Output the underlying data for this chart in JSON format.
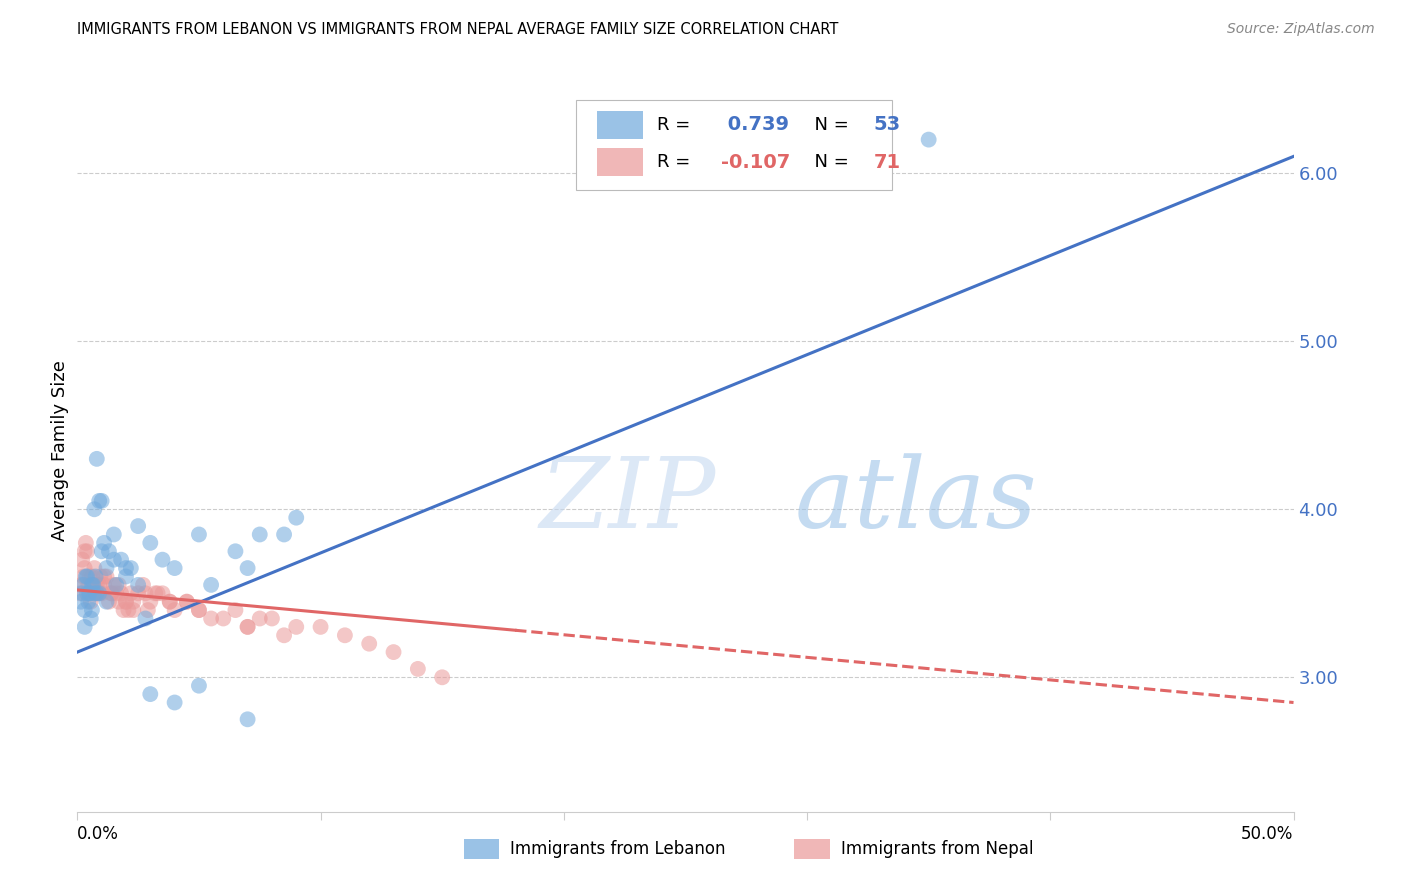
{
  "title": "IMMIGRANTS FROM LEBANON VS IMMIGRANTS FROM NEPAL AVERAGE FAMILY SIZE CORRELATION CHART",
  "source": "Source: ZipAtlas.com",
  "ylabel": "Average Family Size",
  "yticks": [
    3.0,
    4.0,
    5.0,
    6.0
  ],
  "xlim": [
    0.0,
    50.0
  ],
  "ylim": [
    2.2,
    6.5
  ],
  "watermark": "ZIPatlas",
  "lebanon_color": "#6fa8dc",
  "nepal_color": "#ea9999",
  "lebanon_line_color": "#4472c4",
  "nepal_line_color": "#e06666",
  "lebanon_R": 0.739,
  "lebanon_N": 53,
  "nepal_R": -0.107,
  "nepal_N": 71,
  "leb_line_x0": 0.0,
  "leb_line_y0": 3.15,
  "leb_line_x1": 50.0,
  "leb_line_y1": 6.1,
  "nep_line_solid_x0": 0.0,
  "nep_line_solid_y0": 3.52,
  "nep_line_solid_x1": 18.0,
  "nep_line_solid_y1": 3.28,
  "nep_line_dash_x0": 18.0,
  "nep_line_dash_y0": 3.28,
  "nep_line_dash_x1": 50.0,
  "nep_line_dash_y1": 2.85,
  "lebanon_scatter_x": [
    0.15,
    0.2,
    0.25,
    0.3,
    0.35,
    0.4,
    0.45,
    0.5,
    0.55,
    0.6,
    0.65,
    0.7,
    0.75,
    0.8,
    0.9,
    1.0,
    1.1,
    1.2,
    1.3,
    1.5,
    1.6,
    1.8,
    2.0,
    2.2,
    2.5,
    2.8,
    3.0,
    3.5,
    4.0,
    5.0,
    5.5,
    6.5,
    7.0,
    7.5,
    8.5,
    9.0,
    0.3,
    0.4,
    0.5,
    0.6,
    0.7,
    0.8,
    0.9,
    1.0,
    1.2,
    1.5,
    2.0,
    2.5,
    3.0,
    4.0,
    5.0,
    35.0,
    7.0
  ],
  "lebanon_scatter_y": [
    3.45,
    3.5,
    3.55,
    3.4,
    3.6,
    3.5,
    3.45,
    3.5,
    3.35,
    3.4,
    3.55,
    3.5,
    3.6,
    4.3,
    4.05,
    4.05,
    3.8,
    3.65,
    3.75,
    3.7,
    3.55,
    3.7,
    3.65,
    3.65,
    3.55,
    3.35,
    3.8,
    3.7,
    3.65,
    3.85,
    3.55,
    3.75,
    3.65,
    3.85,
    3.85,
    3.95,
    3.3,
    3.6,
    3.5,
    3.55,
    4.0,
    3.5,
    3.5,
    3.75,
    3.45,
    3.85,
    3.6,
    3.9,
    2.9,
    2.85,
    2.95,
    6.2,
    2.75
  ],
  "nepal_scatter_x": [
    0.1,
    0.15,
    0.2,
    0.25,
    0.3,
    0.35,
    0.4,
    0.45,
    0.5,
    0.55,
    0.6,
    0.65,
    0.7,
    0.75,
    0.8,
    0.85,
    0.9,
    0.95,
    1.0,
    1.1,
    1.2,
    1.3,
    1.4,
    1.5,
    1.6,
    1.7,
    1.8,
    1.9,
    2.0,
    2.1,
    2.2,
    2.3,
    2.5,
    2.7,
    2.9,
    3.0,
    3.2,
    3.5,
    3.8,
    4.0,
    4.5,
    5.0,
    5.5,
    6.5,
    7.0,
    7.5,
    8.0,
    9.0,
    10.0,
    11.0,
    12.0,
    13.0,
    14.0,
    15.0,
    0.3,
    0.5,
    0.7,
    0.9,
    1.1,
    1.4,
    1.7,
    2.0,
    2.3,
    2.8,
    3.3,
    3.8,
    4.5,
    5.0,
    6.0,
    7.0,
    8.5
  ],
  "nepal_scatter_y": [
    3.5,
    3.55,
    3.7,
    3.6,
    3.65,
    3.8,
    3.75,
    3.55,
    3.5,
    3.45,
    3.6,
    3.55,
    3.65,
    3.5,
    3.55,
    3.5,
    3.55,
    3.6,
    3.5,
    3.55,
    3.6,
    3.45,
    3.5,
    3.55,
    3.5,
    3.45,
    3.5,
    3.4,
    3.45,
    3.4,
    3.5,
    3.45,
    3.5,
    3.55,
    3.4,
    3.45,
    3.5,
    3.5,
    3.45,
    3.4,
    3.45,
    3.4,
    3.35,
    3.4,
    3.3,
    3.35,
    3.35,
    3.3,
    3.3,
    3.25,
    3.2,
    3.15,
    3.05,
    3.0,
    3.75,
    3.6,
    3.55,
    3.5,
    3.6,
    3.5,
    3.55,
    3.45,
    3.4,
    3.5,
    3.5,
    3.45,
    3.45,
    3.4,
    3.35,
    3.3,
    3.25
  ]
}
